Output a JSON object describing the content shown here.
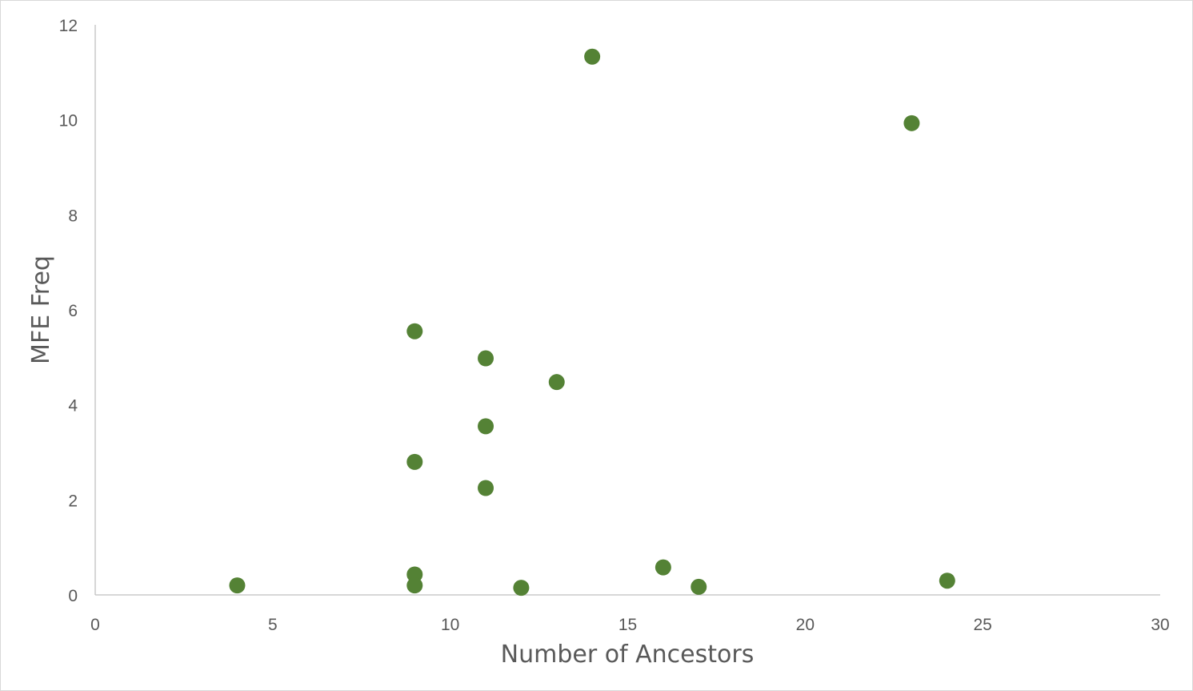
{
  "chart_data": {
    "type": "scatter",
    "xlabel": "Number of Ancestors",
    "ylabel": "MFE Freq",
    "xlim": [
      0,
      30
    ],
    "ylim": [
      0,
      12
    ],
    "x_ticks": [
      0,
      5,
      10,
      15,
      20,
      25,
      30
    ],
    "y_ticks": [
      0,
      2,
      4,
      6,
      8,
      10,
      12
    ],
    "grid": false,
    "legend": "none",
    "marker_color": "#548235",
    "axis_color": "#bfbfbf",
    "text_color": "#595959",
    "points": [
      {
        "x": 4,
        "y": 0.2
      },
      {
        "x": 9,
        "y": 5.55
      },
      {
        "x": 9,
        "y": 2.8
      },
      {
        "x": 9,
        "y": 0.43
      },
      {
        "x": 9,
        "y": 0.2
      },
      {
        "x": 11,
        "y": 4.98
      },
      {
        "x": 11,
        "y": 3.55
      },
      {
        "x": 11,
        "y": 2.25
      },
      {
        "x": 12,
        "y": 0.15
      },
      {
        "x": 13,
        "y": 4.48
      },
      {
        "x": 14,
        "y": 11.33
      },
      {
        "x": 16,
        "y": 0.58
      },
      {
        "x": 17,
        "y": 0.17
      },
      {
        "x": 23,
        "y": 9.93
      },
      {
        "x": 24,
        "y": 0.3
      }
    ]
  }
}
